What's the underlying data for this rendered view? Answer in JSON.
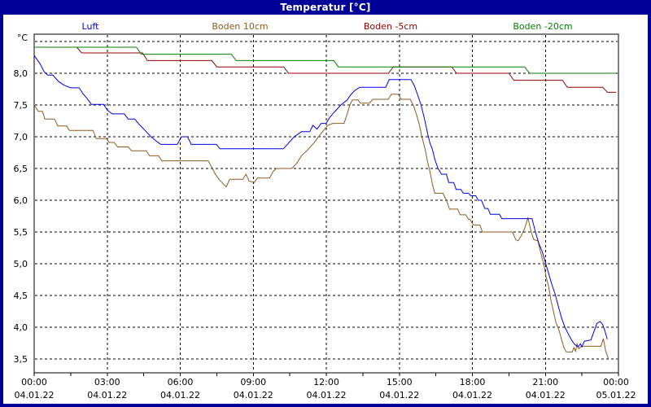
{
  "window": {
    "title": "Temperatur [°C]"
  },
  "legend": {
    "items": [
      {
        "id": "luft",
        "label": "Luft",
        "color": "#0000CC"
      },
      {
        "id": "boden-10cm",
        "label": "Boden 10cm",
        "color": "#8C5A1E"
      },
      {
        "id": "boden-5cm",
        "label": "Boden -5cm",
        "color": "#980000"
      },
      {
        "id": "boden-20cm",
        "label": "Boden -20cm",
        "color": "#008000"
      }
    ]
  },
  "chart_data": {
    "type": "line",
    "title": "Temperatur [°C]",
    "ylabel": "°C",
    "xlabel": "",
    "xlim_hours": [
      0,
      24
    ],
    "ylim": [
      3.3,
      8.6
    ],
    "grid": "dashed",
    "legend_position": "top",
    "minor_tick_step_h": 1.5,
    "yticks": [
      {
        "v": 8.5,
        "label": ""
      },
      {
        "v": 8.0,
        "label": "8,0"
      },
      {
        "v": 7.5,
        "label": "7,5"
      },
      {
        "v": 7.0,
        "label": "7,0"
      },
      {
        "v": 6.5,
        "label": "6,5"
      },
      {
        "v": 6.0,
        "label": "6,0"
      },
      {
        "v": 5.5,
        "label": "5,5"
      },
      {
        "v": 5.0,
        "label": "5,0"
      },
      {
        "v": 4.5,
        "label": "4,5"
      },
      {
        "v": 4.0,
        "label": "4,0"
      },
      {
        "v": 3.5,
        "label": "3,5"
      }
    ],
    "xticks": [
      {
        "h": 0,
        "time": "00:00",
        "date": "04.01.22",
        "grid": false
      },
      {
        "h": 3,
        "time": "03:00",
        "date": "04.01.22",
        "grid": true
      },
      {
        "h": 6,
        "time": "06:00",
        "date": "04.01.22",
        "grid": true
      },
      {
        "h": 9,
        "time": "09:00",
        "date": "04.01.22",
        "grid": true
      },
      {
        "h": 12,
        "time": "12:00",
        "date": "04.01.22",
        "grid": true
      },
      {
        "h": 15,
        "time": "15:00",
        "date": "04.01.22",
        "grid": true
      },
      {
        "h": 18,
        "time": "18:00",
        "date": "04.01.22",
        "grid": true
      },
      {
        "h": 21,
        "time": "21:00",
        "date": "04.01.22",
        "grid": true
      },
      {
        "h": 24,
        "time": "00:00",
        "date": "05.01.22",
        "grid": false
      }
    ],
    "series": [
      {
        "id": "boden-5cm",
        "name": "Boden -5cm",
        "color": "#980000",
        "points": [
          [
            0,
            8.41
          ],
          [
            1.75,
            8.41
          ],
          [
            1.95,
            8.32
          ],
          [
            4.45,
            8.32
          ],
          [
            4.65,
            8.2
          ],
          [
            7.3,
            8.2
          ],
          [
            7.5,
            8.1
          ],
          [
            10.25,
            8.1
          ],
          [
            10.45,
            8.0
          ],
          [
            14.55,
            8.0
          ],
          [
            14.75,
            8.1
          ],
          [
            17.15,
            8.1
          ],
          [
            17.35,
            8.0
          ],
          [
            19.5,
            8.0
          ],
          [
            19.7,
            7.89
          ],
          [
            21.7,
            7.89
          ],
          [
            21.9,
            7.78
          ],
          [
            23.35,
            7.78
          ],
          [
            23.55,
            7.7
          ],
          [
            23.9,
            7.7
          ]
        ]
      },
      {
        "id": "boden-20cm",
        "name": "Boden -20cm",
        "color": "#008000",
        "points": [
          [
            0,
            8.41
          ],
          [
            4.2,
            8.41
          ],
          [
            4.4,
            8.3
          ],
          [
            8.1,
            8.3
          ],
          [
            8.3,
            8.2
          ],
          [
            12.3,
            8.2
          ],
          [
            12.5,
            8.1
          ],
          [
            20.15,
            8.1
          ],
          [
            20.35,
            8.0
          ],
          [
            23.9,
            8.0
          ]
        ]
      },
      {
        "id": "boden-10cm",
        "name": "Boden 10cm",
        "color": "#8C5A1E",
        "points": [
          [
            0,
            7.5
          ],
          [
            0.17,
            7.4
          ],
          [
            0.34,
            7.4
          ],
          [
            0.44,
            7.28
          ],
          [
            0.84,
            7.28
          ],
          [
            0.97,
            7.17
          ],
          [
            1.34,
            7.17
          ],
          [
            1.44,
            7.1
          ],
          [
            2.42,
            7.1
          ],
          [
            2.55,
            6.97
          ],
          [
            2.96,
            6.97
          ],
          [
            3.09,
            6.91
          ],
          [
            3.29,
            6.91
          ],
          [
            3.43,
            6.84
          ],
          [
            3.86,
            6.84
          ],
          [
            4.0,
            6.78
          ],
          [
            4.6,
            6.78
          ],
          [
            4.74,
            6.7
          ],
          [
            5.11,
            6.7
          ],
          [
            5.24,
            6.62
          ],
          [
            7.15,
            6.62
          ],
          [
            7.32,
            6.5
          ],
          [
            7.46,
            6.4
          ],
          [
            7.59,
            6.33
          ],
          [
            7.76,
            6.26
          ],
          [
            7.89,
            6.21
          ],
          [
            8.03,
            6.33
          ],
          [
            8.57,
            6.33
          ],
          [
            8.7,
            6.41
          ],
          [
            8.83,
            6.3
          ],
          [
            9.04,
            6.28
          ],
          [
            9.17,
            6.35
          ],
          [
            9.67,
            6.35
          ],
          [
            9.81,
            6.45
          ],
          [
            9.94,
            6.5
          ],
          [
            10.58,
            6.5
          ],
          [
            10.78,
            6.58
          ],
          [
            10.98,
            6.7
          ],
          [
            11.25,
            6.8
          ],
          [
            11.49,
            6.9
          ],
          [
            11.72,
            7.02
          ],
          [
            11.89,
            7.1
          ],
          [
            12.06,
            7.18
          ],
          [
            12.26,
            7.21
          ],
          [
            12.73,
            7.21
          ],
          [
            12.86,
            7.36
          ],
          [
            12.97,
            7.5
          ],
          [
            13.07,
            7.58
          ],
          [
            13.3,
            7.58
          ],
          [
            13.4,
            7.53
          ],
          [
            13.77,
            7.53
          ],
          [
            13.91,
            7.59
          ],
          [
            14.54,
            7.59
          ],
          [
            14.68,
            7.67
          ],
          [
            14.95,
            7.67
          ],
          [
            15.08,
            7.59
          ],
          [
            15.45,
            7.59
          ],
          [
            15.58,
            7.49
          ],
          [
            15.72,
            7.33
          ],
          [
            15.82,
            7.19
          ],
          [
            15.92,
            7.01
          ],
          [
            16.06,
            6.8
          ],
          [
            16.16,
            6.6
          ],
          [
            16.26,
            6.45
          ],
          [
            16.36,
            6.25
          ],
          [
            16.46,
            6.11
          ],
          [
            16.79,
            6.11
          ],
          [
            16.93,
            6.0
          ],
          [
            17.06,
            5.86
          ],
          [
            17.4,
            5.86
          ],
          [
            17.5,
            5.77
          ],
          [
            17.73,
            5.77
          ],
          [
            17.84,
            5.7
          ],
          [
            17.9,
            5.7
          ],
          [
            18.04,
            5.61
          ],
          [
            18.31,
            5.61
          ],
          [
            18.41,
            5.5
          ],
          [
            19.65,
            5.5
          ],
          [
            19.78,
            5.38
          ],
          [
            19.88,
            5.36
          ],
          [
            20.02,
            5.45
          ],
          [
            20.15,
            5.56
          ],
          [
            20.28,
            5.72
          ],
          [
            20.42,
            5.5
          ],
          [
            20.52,
            5.38
          ],
          [
            20.69,
            5.36
          ],
          [
            20.79,
            5.2
          ],
          [
            20.89,
            5.05
          ],
          [
            20.96,
            4.94
          ],
          [
            21.03,
            4.79
          ],
          [
            21.13,
            4.65
          ],
          [
            21.23,
            4.42
          ],
          [
            21.33,
            4.25
          ],
          [
            21.43,
            4.08
          ],
          [
            21.56,
            3.95
          ],
          [
            21.66,
            3.81
          ],
          [
            21.76,
            3.68
          ],
          [
            21.86,
            3.61
          ],
          [
            22.1,
            3.61
          ],
          [
            22.17,
            3.68
          ],
          [
            22.24,
            3.62
          ],
          [
            22.3,
            3.74
          ],
          [
            22.37,
            3.66
          ],
          [
            22.47,
            3.7
          ],
          [
            23.28,
            3.7
          ],
          [
            23.38,
            3.82
          ],
          [
            23.48,
            3.62
          ],
          [
            23.58,
            3.51
          ]
        ]
      },
      {
        "id": "luft",
        "name": "Luft",
        "color": "#0000EE",
        "points": [
          [
            0,
            8.28
          ],
          [
            0.24,
            8.15
          ],
          [
            0.4,
            8.03
          ],
          [
            0.55,
            7.97
          ],
          [
            0.77,
            7.97
          ],
          [
            1.0,
            7.87
          ],
          [
            1.24,
            7.81
          ],
          [
            1.5,
            7.77
          ],
          [
            1.85,
            7.77
          ],
          [
            2.0,
            7.68
          ],
          [
            2.18,
            7.6
          ],
          [
            2.35,
            7.51
          ],
          [
            2.85,
            7.51
          ],
          [
            3.0,
            7.42
          ],
          [
            3.2,
            7.36
          ],
          [
            3.7,
            7.36
          ],
          [
            3.86,
            7.28
          ],
          [
            4.13,
            7.28
          ],
          [
            4.3,
            7.2
          ],
          [
            4.55,
            7.1
          ],
          [
            4.8,
            7.0
          ],
          [
            5.05,
            6.92
          ],
          [
            5.2,
            6.88
          ],
          [
            5.88,
            6.88
          ],
          [
            6.05,
            7.0
          ],
          [
            6.3,
            7.0
          ],
          [
            6.45,
            6.88
          ],
          [
            7.49,
            6.88
          ],
          [
            7.63,
            6.81
          ],
          [
            10.24,
            6.81
          ],
          [
            10.4,
            6.88
          ],
          [
            10.68,
            7.0
          ],
          [
            10.98,
            7.08
          ],
          [
            11.32,
            7.08
          ],
          [
            11.45,
            7.18
          ],
          [
            11.62,
            7.12
          ],
          [
            11.79,
            7.21
          ],
          [
            11.99,
            7.21
          ],
          [
            12.13,
            7.3
          ],
          [
            12.33,
            7.39
          ],
          [
            12.6,
            7.5
          ],
          [
            12.86,
            7.58
          ],
          [
            13.0,
            7.66
          ],
          [
            13.17,
            7.73
          ],
          [
            13.37,
            7.78
          ],
          [
            14.44,
            7.78
          ],
          [
            14.58,
            7.9
          ],
          [
            15.48,
            7.9
          ],
          [
            15.62,
            7.8
          ],
          [
            15.75,
            7.66
          ],
          [
            15.89,
            7.5
          ],
          [
            16.02,
            7.3
          ],
          [
            16.16,
            7.05
          ],
          [
            16.26,
            6.9
          ],
          [
            16.36,
            6.8
          ],
          [
            16.46,
            6.64
          ],
          [
            16.59,
            6.5
          ],
          [
            16.73,
            6.41
          ],
          [
            16.93,
            6.41
          ],
          [
            17.03,
            6.28
          ],
          [
            17.23,
            6.28
          ],
          [
            17.33,
            6.17
          ],
          [
            17.53,
            6.17
          ],
          [
            17.63,
            6.11
          ],
          [
            17.84,
            6.11
          ],
          [
            17.94,
            6.07
          ],
          [
            18.14,
            6.07
          ],
          [
            18.24,
            6.0
          ],
          [
            18.37,
            6.0
          ],
          [
            18.51,
            5.87
          ],
          [
            18.64,
            5.87
          ],
          [
            18.74,
            5.78
          ],
          [
            19.11,
            5.78
          ],
          [
            19.21,
            5.71
          ],
          [
            20.45,
            5.71
          ],
          [
            20.59,
            5.5
          ],
          [
            20.72,
            5.33
          ],
          [
            20.86,
            5.2
          ],
          [
            20.99,
            5.03
          ],
          [
            21.13,
            4.85
          ],
          [
            21.26,
            4.68
          ],
          [
            21.4,
            4.52
          ],
          [
            21.53,
            4.33
          ],
          [
            21.66,
            4.15
          ],
          [
            21.8,
            4.0
          ],
          [
            21.93,
            3.9
          ],
          [
            22.07,
            3.8
          ],
          [
            22.2,
            3.73
          ],
          [
            22.34,
            3.69
          ],
          [
            22.44,
            3.74
          ],
          [
            22.5,
            3.69
          ],
          [
            22.6,
            3.78
          ],
          [
            22.87,
            3.8
          ],
          [
            23.01,
            3.95
          ],
          [
            23.11,
            4.06
          ],
          [
            23.24,
            4.09
          ],
          [
            23.34,
            4.05
          ],
          [
            23.44,
            3.95
          ],
          [
            23.54,
            3.81
          ]
        ]
      }
    ]
  }
}
